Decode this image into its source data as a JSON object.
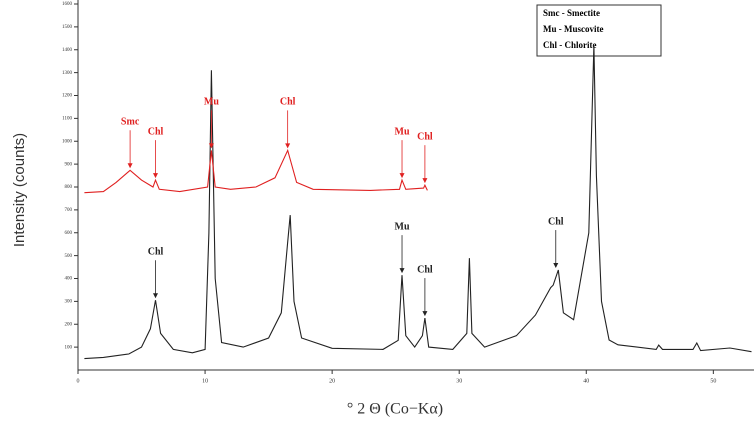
{
  "chart_data": {
    "type": "line",
    "y_label": "Intensity (counts)",
    "x_label": "° 2 Θ (Co−Kα)",
    "xlim": [
      0,
      53.2
    ],
    "xticks": [
      0,
      10,
      20,
      30,
      40,
      50
    ],
    "ylim": [
      0,
      1600
    ],
    "yticks": [
      100,
      200,
      300,
      400,
      500,
      600,
      700,
      800,
      900,
      1000,
      1100,
      1200,
      1300,
      1400,
      1500,
      1600
    ],
    "legend_text": [
      "Smc - Smectite",
      "Mu - Muscovite",
      "Chl - Chlorite"
    ],
    "series": [
      {
        "color": "#222222",
        "x": [
          0.5,
          2,
          4,
          5,
          5.7,
          6.1,
          6.5,
          7.5,
          9,
          10,
          10.3,
          10.5,
          10.8,
          11.3,
          13,
          15,
          16,
          16.5,
          16.7,
          17,
          17.6,
          20,
          24,
          25.2,
          25.5,
          25.8,
          26.5,
          27.1,
          27.3,
          27.6,
          29.5,
          30.6,
          30.8,
          31.0,
          32,
          34.5,
          36,
          37.2,
          37.4,
          37.8,
          38.2,
          39,
          40.2,
          40.6,
          40.8,
          41.2,
          41.8,
          42.5,
          45.5,
          45.7,
          46,
          48.4,
          48.7,
          49,
          51.3,
          53
        ],
        "values": [
          50,
          55,
          70,
          100,
          180,
          305,
          160,
          90,
          75,
          90,
          600,
          1310,
          400,
          120,
          100,
          140,
          250,
          560,
          677,
          300,
          140,
          95,
          90,
          130,
          415,
          150,
          100,
          150,
          227,
          100,
          90,
          160,
          489,
          160,
          100,
          150,
          240,
          360,
          371,
          437,
          250,
          220,
          600,
          1419,
          850,
          300,
          131,
          110,
          90,
          109,
          90,
          90,
          118,
          85,
          96,
          80
        ]
      },
      {
        "color": "#e02020",
        "x": [
          0.5,
          2,
          3,
          4.1,
          5,
          5.9,
          6.1,
          6.4,
          8,
          10.2,
          10.5,
          10.8,
          12,
          14,
          15.5,
          16.5,
          17.2,
          18.5,
          23,
          25.3,
          25.5,
          25.8,
          27.2,
          27.3,
          27.5
        ],
        "values": [
          775,
          780,
          820,
          873,
          830,
          800,
          830,
          790,
          780,
          800,
          960,
          800,
          790,
          800,
          840,
          960,
          820,
          790,
          785,
          790,
          830,
          790,
          795,
          808,
          785
        ]
      }
    ],
    "annotations": [
      {
        "text": "Smc",
        "x": 4.1,
        "y": 873,
        "color": "#e02020"
      },
      {
        "text": "Chl",
        "x": 6.1,
        "y": 830,
        "color": "#e02020"
      },
      {
        "text": "Mu",
        "x": 10.5,
        "y": 960,
        "color": "#e02020"
      },
      {
        "text": "Chl",
        "x": 16.5,
        "y": 960,
        "color": "#e02020"
      },
      {
        "text": "Mu",
        "x": 25.5,
        "y": 830,
        "color": "#e02020"
      },
      {
        "text": "Chl",
        "x": 27.3,
        "y": 808,
        "color": "#e02020"
      },
      {
        "text": "Chl",
        "x": 6.1,
        "y": 305,
        "color": "#222222"
      },
      {
        "text": "Mu",
        "x": 25.5,
        "y": 415,
        "color": "#222222"
      },
      {
        "text": "Chl",
        "x": 27.3,
        "y": 227,
        "color": "#222222"
      },
      {
        "text": "Chl",
        "x": 37.6,
        "y": 437,
        "color": "#222222"
      }
    ]
  }
}
